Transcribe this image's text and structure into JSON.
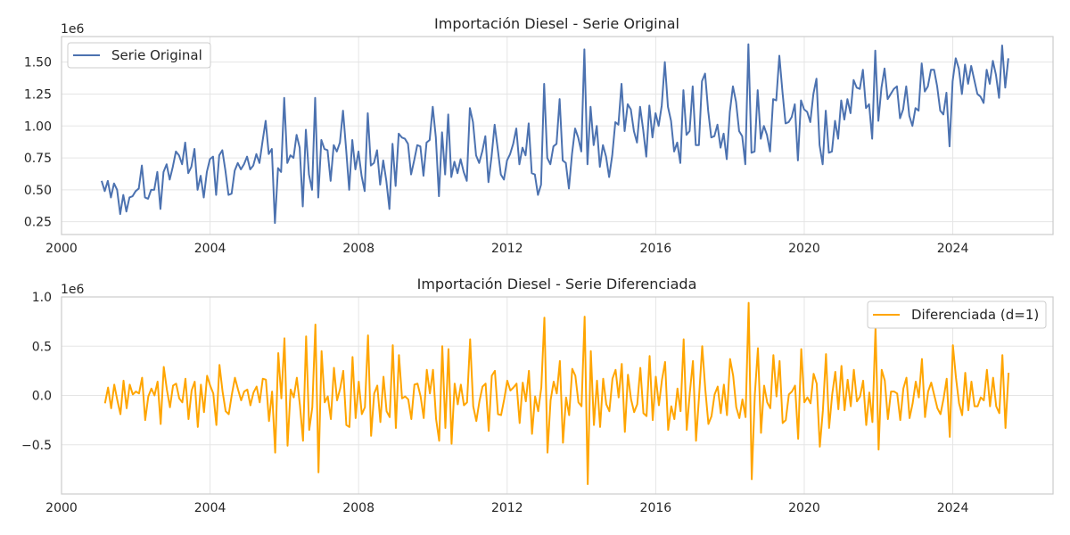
{
  "chart_data": [
    {
      "type": "line",
      "title": "Importación Diesel - Serie Original",
      "xlabel": "",
      "ylabel": "",
      "y_offset_label": "1e6",
      "x_tick_labels": [
        "2000",
        "2004",
        "2008",
        "2012",
        "2016",
        "2020",
        "2024"
      ],
      "y_tick_labels": [
        "0.25",
        "0.50",
        "0.75",
        "1.00",
        "1.25",
        "1.50"
      ],
      "xlim": [
        2000,
        2026.7
      ],
      "ylim": [
        0.15,
        1.7
      ],
      "grid": true,
      "legend_position": "top-left",
      "series": [
        {
          "name": "Serie Original",
          "color": "#4c72b0",
          "x_start": 2001.08,
          "x_step": 0.08333,
          "values": [
            0.57,
            0.49,
            0.57,
            0.44,
            0.55,
            0.5,
            0.31,
            0.46,
            0.33,
            0.44,
            0.45,
            0.49,
            0.51,
            0.69,
            0.44,
            0.43,
            0.5,
            0.5,
            0.64,
            0.35,
            0.64,
            0.7,
            0.58,
            0.68,
            0.8,
            0.77,
            0.7,
            0.87,
            0.63,
            0.68,
            0.82,
            0.5,
            0.61,
            0.44,
            0.64,
            0.74,
            0.76,
            0.46,
            0.77,
            0.81,
            0.65,
            0.46,
            0.47,
            0.65,
            0.71,
            0.66,
            0.7,
            0.76,
            0.66,
            0.69,
            0.78,
            0.71,
            0.88,
            1.04,
            0.78,
            0.82,
            0.24,
            0.67,
            0.64,
            1.22,
            0.71,
            0.77,
            0.75,
            0.93,
            0.83,
            0.37,
            0.97,
            0.62,
            0.5,
            1.22,
            0.44,
            0.89,
            0.82,
            0.81,
            0.57,
            0.85,
            0.8,
            0.87,
            1.12,
            0.82,
            0.5,
            0.89,
            0.66,
            0.8,
            0.61,
            0.49,
            1.1,
            0.69,
            0.71,
            0.81,
            0.54,
            0.73,
            0.57,
            0.35,
            0.86,
            0.53,
            0.94,
            0.91,
            0.9,
            0.86,
            0.62,
            0.73,
            0.85,
            0.84,
            0.61,
            0.87,
            0.89,
            1.15,
            0.91,
            0.45,
            0.95,
            0.62,
            1.09,
            0.6,
            0.72,
            0.63,
            0.74,
            0.64,
            0.57,
            1.14,
            1.03,
            0.77,
            0.71,
            0.8,
            0.92,
            0.56,
            0.76,
            1.01,
            0.82,
            0.62,
            0.58,
            0.73,
            0.78,
            0.86,
            0.98,
            0.7,
            0.83,
            0.77,
            1.02,
            0.63,
            0.62,
            0.46,
            0.54,
            1.33,
            0.75,
            0.7,
            0.84,
            0.86,
            1.21,
            0.73,
            0.71,
            0.51,
            0.78,
            0.98,
            0.91,
            0.8,
            1.6,
            0.7,
            1.15,
            0.85,
            1.0,
            0.68,
            0.85,
            0.76,
            0.6,
            0.77,
            1.03,
            1.01,
            1.33,
            0.96,
            1.17,
            1.13,
            0.96,
            0.87,
            1.15,
            0.97,
            0.76,
            1.16,
            0.91,
            1.1,
            1.0,
            1.16,
            1.5,
            1.15,
            1.04,
            0.8,
            0.87,
            0.71,
            1.28,
            0.93,
            0.96,
            1.31,
            0.85,
            0.85,
            1.35,
            1.41,
            1.12,
            0.91,
            0.92,
            1.01,
            0.83,
            0.94,
            0.74,
            1.11,
            1.31,
            1.19,
            0.96,
            0.92,
            0.7,
            1.64,
            0.79,
            0.8,
            1.28,
            0.9,
            1.0,
            0.93,
            0.8,
            1.21,
            1.2,
            1.55,
            1.27,
            1.02,
            1.03,
            1.07,
            1.17,
            0.73,
            1.2,
            1.13,
            1.11,
            1.03,
            1.25,
            1.37,
            0.85,
            0.7,
            1.12,
            0.79,
            0.8,
            1.04,
            0.9,
            1.2,
            1.05,
            1.21,
            1.1,
            1.36,
            1.3,
            1.29,
            1.44,
            1.14,
            1.17,
            0.9,
            1.59,
            1.04,
            1.3,
            1.45,
            1.21,
            1.25,
            1.29,
            1.31,
            1.06,
            1.13,
            1.31,
            1.08,
            1.0,
            1.14,
            1.12,
            1.49,
            1.27,
            1.31,
            1.44,
            1.44,
            1.31,
            1.12,
            1.09,
            1.26,
            0.84,
            1.35,
            1.53,
            1.45,
            1.25,
            1.48,
            1.33,
            1.47,
            1.36,
            1.25,
            1.23,
            1.18,
            1.44,
            1.33,
            1.51,
            1.4,
            1.22,
            1.63,
            1.3,
            1.53
          ]
        }
      ]
    },
    {
      "type": "line",
      "title": "Importación Diesel - Serie Diferenciada",
      "xlabel": "",
      "ylabel": "",
      "y_offset_label": "1e6",
      "x_tick_labels": [
        "2000",
        "2004",
        "2008",
        "2012",
        "2016",
        "2020",
        "2024"
      ],
      "y_tick_labels": [
        "−0.5",
        "0.0",
        "0.5",
        "1.0"
      ],
      "xlim": [
        2000,
        2026.7
      ],
      "ylim": [
        -1.0,
        1.0
      ],
      "grid": true,
      "legend_position": "top-right",
      "series": [
        {
          "name": "Diferenciada (d=1)",
          "color": "#ffa500",
          "x_start": 2001.17,
          "x_step": 0.08333,
          "values": [
            -0.08,
            0.08,
            -0.13,
            0.11,
            -0.05,
            -0.19,
            0.15,
            -0.13,
            0.11,
            0.01,
            0.04,
            0.02,
            0.18,
            -0.25,
            -0.01,
            0.07,
            0.0,
            0.14,
            -0.29,
            0.29,
            0.06,
            -0.12,
            0.1,
            0.12,
            -0.03,
            -0.07,
            0.17,
            -0.24,
            0.05,
            0.14,
            -0.32,
            0.11,
            -0.17,
            0.2,
            0.1,
            0.02,
            -0.3,
            0.31,
            0.04,
            -0.16,
            -0.19,
            0.01,
            0.18,
            0.06,
            -0.05,
            0.04,
            0.06,
            -0.1,
            0.03,
            0.09,
            -0.07,
            0.17,
            0.16,
            -0.26,
            0.04,
            -0.58,
            0.43,
            -0.03,
            0.58,
            -0.51,
            0.06,
            -0.02,
            0.18,
            -0.1,
            -0.46,
            0.6,
            -0.35,
            -0.12,
            0.72,
            -0.78,
            0.45,
            -0.07,
            -0.01,
            -0.24,
            0.28,
            -0.05,
            0.07,
            0.25,
            -0.3,
            -0.32,
            0.39,
            -0.23,
            0.14,
            -0.19,
            -0.12,
            0.61,
            -0.41,
            0.02,
            0.1,
            -0.27,
            0.19,
            -0.16,
            -0.22,
            0.51,
            -0.33,
            0.41,
            -0.03,
            -0.01,
            -0.04,
            -0.24,
            0.11,
            0.12,
            -0.01,
            -0.23,
            0.26,
            0.02,
            0.26,
            -0.24,
            -0.46,
            0.5,
            -0.33,
            0.47,
            -0.49,
            0.12,
            -0.09,
            0.11,
            -0.1,
            -0.07,
            0.57,
            -0.11,
            -0.26,
            -0.06,
            0.09,
            0.12,
            -0.36,
            0.2,
            0.25,
            -0.19,
            -0.2,
            -0.04,
            0.15,
            0.05,
            0.08,
            0.12,
            -0.28,
            0.13,
            -0.06,
            0.25,
            -0.39,
            -0.01,
            -0.16,
            0.08,
            0.79,
            -0.58,
            -0.05,
            0.14,
            0.02,
            0.35,
            -0.48,
            -0.02,
            -0.2,
            0.27,
            0.2,
            -0.07,
            -0.11,
            0.8,
            -0.9,
            0.45,
            -0.3,
            0.15,
            -0.32,
            0.17,
            -0.09,
            -0.16,
            0.17,
            0.26,
            -0.02,
            0.32,
            -0.37,
            0.21,
            -0.04,
            -0.17,
            -0.09,
            0.28,
            -0.18,
            -0.21,
            0.4,
            -0.25,
            0.19,
            -0.1,
            0.16,
            0.34,
            -0.35,
            -0.11,
            -0.24,
            0.07,
            -0.16,
            0.57,
            -0.35,
            0.03,
            0.35,
            -0.46,
            0.0,
            0.5,
            0.06,
            -0.29,
            -0.21,
            0.01,
            0.09,
            -0.18,
            0.11,
            -0.2,
            0.37,
            0.2,
            -0.12,
            -0.23,
            -0.04,
            -0.22,
            0.94,
            -0.85,
            0.01,
            0.48,
            -0.38,
            0.1,
            -0.07,
            -0.13,
            0.41,
            -0.01,
            0.35,
            -0.28,
            -0.25,
            0.01,
            0.04,
            0.1,
            -0.44,
            0.47,
            -0.07,
            -0.02,
            -0.08,
            0.22,
            0.12,
            -0.52,
            -0.15,
            0.42,
            -0.33,
            0.01,
            0.24,
            -0.14,
            0.3,
            -0.15,
            0.16,
            -0.11,
            0.26,
            -0.06,
            -0.01,
            0.15,
            -0.3,
            0.03,
            -0.27,
            0.69,
            -0.55,
            0.26,
            0.15,
            -0.24,
            0.04,
            0.04,
            0.02,
            -0.25,
            0.07,
            0.18,
            -0.23,
            -0.08,
            0.14,
            -0.02,
            0.37,
            -0.22,
            0.04,
            0.13,
            0.0,
            -0.13,
            -0.19,
            -0.03,
            0.17,
            -0.42,
            0.51,
            0.18,
            -0.08,
            -0.2,
            0.23,
            -0.15,
            0.14,
            -0.11,
            -0.11,
            -0.02,
            -0.05,
            0.26,
            -0.11,
            0.18,
            -0.11,
            -0.18,
            0.41,
            -0.33,
            0.23
          ]
        }
      ]
    }
  ]
}
